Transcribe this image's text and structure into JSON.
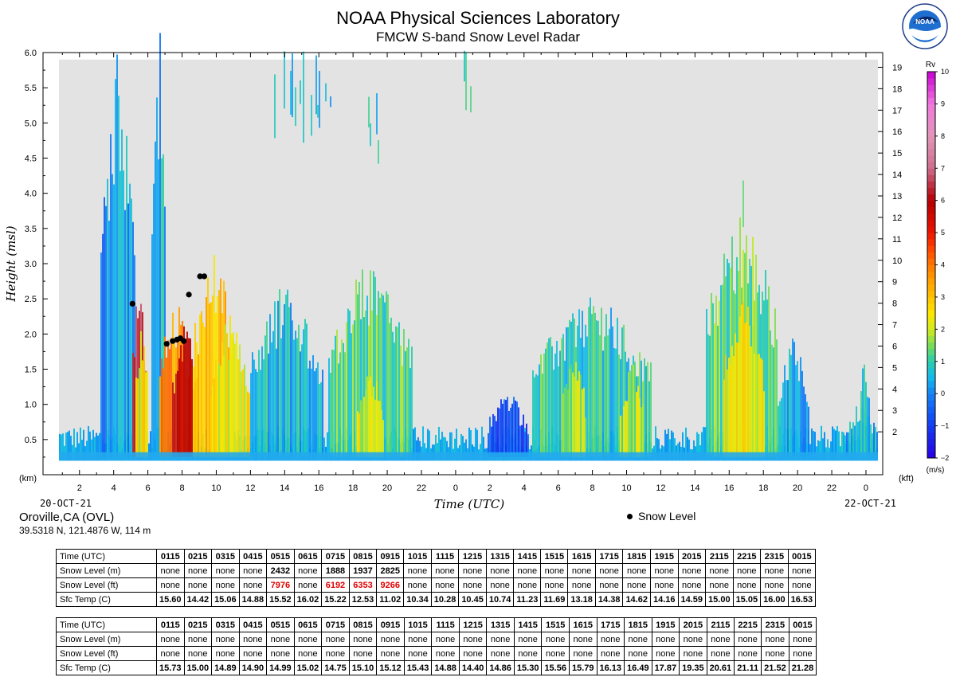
{
  "title": "NOAA Physical Sciences Laboratory",
  "subtitle": "FMCW S-band Snow Level Radar",
  "logo_text": "NOAA",
  "location": {
    "name": "Oroville,CA (OVL)",
    "coords": "39.5318 N, 121.4876 W, 114 m"
  },
  "legend": {
    "snow_level_label": "Snow Level"
  },
  "chart_data": {
    "type": "heatmap",
    "xlabel": "Time (UTC)",
    "ylabel": "Height (msl)",
    "y_unit_left": "(km)",
    "y_unit_right": "(kft)",
    "x_start_label": "20-OCT-21",
    "x_end_label": "22-OCT-21",
    "x_range_hours": [
      0.8,
      24.7
    ],
    "x_ticks": [
      {
        "hour": 2,
        "label": "2"
      },
      {
        "hour": 4,
        "label": "4"
      },
      {
        "hour": 6,
        "label": "6"
      },
      {
        "hour": 8,
        "label": "8"
      },
      {
        "hour": 10,
        "label": "10"
      },
      {
        "hour": 12,
        "label": "12"
      },
      {
        "hour": 14,
        "label": "14"
      },
      {
        "hour": 16,
        "label": "16"
      },
      {
        "hour": 18,
        "label": "18"
      },
      {
        "hour": 20,
        "label": "20"
      },
      {
        "hour": 22,
        "label": "22"
      },
      {
        "hour": 24,
        "label": "0"
      },
      {
        "hour": 26,
        "label": "2"
      },
      {
        "hour": 28,
        "label": "4"
      },
      {
        "hour": 30,
        "label": "6"
      },
      {
        "hour": 32,
        "label": "8"
      },
      {
        "hour": 34,
        "label": "10"
      },
      {
        "hour": 36,
        "label": "12"
      },
      {
        "hour": 38,
        "label": "14"
      },
      {
        "hour": 40,
        "label": "16"
      },
      {
        "hour": 42,
        "label": "18"
      },
      {
        "hour": 44,
        "label": "20"
      },
      {
        "hour": 46,
        "label": "22"
      },
      {
        "hour": 48,
        "label": "0"
      }
    ],
    "x_hours_total": [
      0.8,
      48.7
    ],
    "ylim_km": [
      0,
      6.0
    ],
    "y_ticks_km": [
      "0.5",
      "1.0",
      "1.5",
      "2.0",
      "2.5",
      "3.0",
      "3.5",
      "4.0",
      "4.5",
      "5.0",
      "5.5",
      "6.0"
    ],
    "y_ticks_kft": [
      2,
      3,
      4,
      5,
      6,
      7,
      8,
      9,
      10,
      11,
      12,
      13,
      14,
      15,
      16,
      17,
      18,
      19
    ],
    "colorbar": {
      "label_top": "Rv",
      "label_bottom": "(m/s)",
      "range": [
        -2,
        10
      ],
      "tick_labels": [
        "−2",
        "−1",
        "0",
        "1",
        "2",
        "3",
        "4",
        "5",
        "6",
        "7",
        "8",
        "9",
        "10"
      ]
    },
    "snow_level_points": [
      {
        "hour": 5.1,
        "km": 2.43
      },
      {
        "hour": 7.1,
        "km": 1.86
      },
      {
        "hour": 7.45,
        "km": 1.9
      },
      {
        "hour": 7.7,
        "km": 1.92
      },
      {
        "hour": 7.9,
        "km": 1.94
      },
      {
        "hour": 8.1,
        "km": 1.9
      },
      {
        "hour": 8.4,
        "km": 2.56
      },
      {
        "hour": 9.05,
        "km": 2.82
      },
      {
        "hour": 9.3,
        "km": 2.82
      }
    ],
    "echo_bands": [
      {
        "h0": 3.2,
        "h1": 5.2,
        "top": 5.2,
        "v": 0.2
      },
      {
        "h0": 5.0,
        "h1": 5.9,
        "top": 2.3,
        "v": 6.5
      },
      {
        "h0": 5.2,
        "h1": 6.0,
        "top": 1.95,
        "v": 2.2
      },
      {
        "h0": 6.2,
        "h1": 7.0,
        "top": 5.5,
        "v": 0.5
      },
      {
        "h0": 6.6,
        "h1": 8.6,
        "top": 2.2,
        "v": 3.6
      },
      {
        "h0": 7.4,
        "h1": 8.9,
        "top": 1.85,
        "v": 5.8
      },
      {
        "h0": 8.6,
        "h1": 11.0,
        "top": 2.8,
        "v": 3.0
      },
      {
        "h0": 9.6,
        "h1": 11.9,
        "top": 1.9,
        "v": 2.4
      },
      {
        "h0": 11.9,
        "h1": 16.2,
        "top": 2.3,
        "v": 0.5
      },
      {
        "h0": 16.5,
        "h1": 21.4,
        "top": 2.6,
        "v": 1.2
      },
      {
        "h0": 18.2,
        "h1": 19.8,
        "top": 1.3,
        "v": 2.2
      },
      {
        "h0": 25.8,
        "h1": 28.2,
        "top": 1.05,
        "v": -0.7
      },
      {
        "h0": 28.4,
        "h1": 35.4,
        "top": 2.2,
        "v": 0.9
      },
      {
        "h0": 30.2,
        "h1": 31.6,
        "top": 1.5,
        "v": 1.9
      },
      {
        "h0": 33.6,
        "h1": 35.0,
        "top": 1.4,
        "v": 1.9
      },
      {
        "h0": 38.6,
        "h1": 42.8,
        "top": 3.2,
        "v": 1.3
      },
      {
        "h0": 39.6,
        "h1": 42.0,
        "top": 2.2,
        "v": 2.5
      },
      {
        "h0": 42.8,
        "h1": 44.6,
        "top": 1.8,
        "v": 0.4
      },
      {
        "h0": 46.5,
        "h1": 48.7,
        "top": 0.9,
        "v": 0.3
      },
      {
        "h0": 47.6,
        "h1": 48.2,
        "top": 1.5,
        "v": 0.8
      }
    ],
    "upper_echoes": [
      {
        "h0": 13.3,
        "h1": 16.7,
        "km0": 4.7,
        "km1": 5.9,
        "v": 0.6
      },
      {
        "h0": 18.8,
        "h1": 19.8,
        "km0": 4.4,
        "km1": 5.3,
        "v": 0.7
      },
      {
        "h0": 24.4,
        "h1": 25.0,
        "km0": 5.1,
        "km1": 5.95,
        "v": 0.8
      },
      {
        "h0": 40.4,
        "h1": 41.4,
        "km0": 3.0,
        "km1": 4.3,
        "v": 1.0
      }
    ]
  },
  "tables": [
    {
      "rows": [
        {
          "label": "Time (UTC)",
          "cells": [
            "0115",
            "0215",
            "0315",
            "0415",
            "0515",
            "0615",
            "0715",
            "0815",
            "0915",
            "1015",
            "1115",
            "1215",
            "1315",
            "1415",
            "1515",
            "1615",
            "1715",
            "1815",
            "1915",
            "2015",
            "2115",
            "2215",
            "2315",
            "0015"
          ],
          "style": "time"
        },
        {
          "label": "Snow Level (m)",
          "cells": [
            "none",
            "none",
            "none",
            "none",
            "2432",
            "none",
            "1888",
            "1937",
            "2825",
            "none",
            "none",
            "none",
            "none",
            "none",
            "none",
            "none",
            "none",
            "none",
            "none",
            "none",
            "none",
            "none",
            "none",
            "none"
          ],
          "style": "m"
        },
        {
          "label": "Snow Level (ft)",
          "cells": [
            "none",
            "none",
            "none",
            "none",
            "7976",
            "none",
            "6192",
            "6353",
            "9266",
            "none",
            "none",
            "none",
            "none",
            "none",
            "none",
            "none",
            "none",
            "none",
            "none",
            "none",
            "none",
            "none",
            "none",
            "none"
          ],
          "style": "ft"
        },
        {
          "label": "Sfc Temp (C)",
          "cells": [
            "15.60",
            "14.42",
            "15.06",
            "14.88",
            "15.52",
            "16.02",
            "15.22",
            "12.53",
            "11.02",
            "10.34",
            "10.28",
            "10.45",
            "10.74",
            "11.23",
            "11.69",
            "13.18",
            "14.38",
            "14.62",
            "14.16",
            "14.59",
            "15.00",
            "15.05",
            "16.00",
            "16.53"
          ],
          "style": "temp"
        }
      ]
    },
    {
      "rows": [
        {
          "label": "Time (UTC)",
          "cells": [
            "0115",
            "0215",
            "0315",
            "0415",
            "0515",
            "0615",
            "0715",
            "0815",
            "0915",
            "1015",
            "1115",
            "1215",
            "1315",
            "1415",
            "1515",
            "1615",
            "1715",
            "1815",
            "1915",
            "2015",
            "2115",
            "2215",
            "2315",
            "0015"
          ],
          "style": "time"
        },
        {
          "label": "Snow Level (m)",
          "cells": [
            "none",
            "none",
            "none",
            "none",
            "none",
            "none",
            "none",
            "none",
            "none",
            "none",
            "none",
            "none",
            "none",
            "none",
            "none",
            "none",
            "none",
            "none",
            "none",
            "none",
            "none",
            "none",
            "none",
            "none"
          ],
          "style": "m"
        },
        {
          "label": "Snow Level (ft)",
          "cells": [
            "none",
            "none",
            "none",
            "none",
            "none",
            "none",
            "none",
            "none",
            "none",
            "none",
            "none",
            "none",
            "none",
            "none",
            "none",
            "none",
            "none",
            "none",
            "none",
            "none",
            "none",
            "none",
            "none",
            "none"
          ],
          "style": "ft"
        },
        {
          "label": "Sfc Temp (C)",
          "cells": [
            "15.73",
            "15.00",
            "14.89",
            "14.90",
            "14.99",
            "15.02",
            "14.75",
            "15.10",
            "15.12",
            "15.43",
            "14.88",
            "14.40",
            "14.86",
            "15.30",
            "15.56",
            "15.79",
            "16.13",
            "16.49",
            "17.87",
            "19.35",
            "20.61",
            "21.11",
            "21.52",
            "21.28"
          ],
          "style": "temp"
        }
      ]
    }
  ]
}
